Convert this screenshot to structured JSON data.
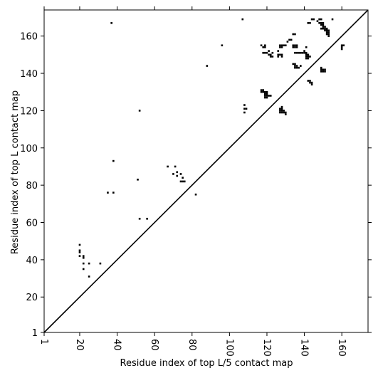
{
  "chart_data": {
    "type": "scatter",
    "title": "",
    "xlabel": "Residue index of top L/5 contact map",
    "ylabel": "Residue index of top L contact map",
    "xlim": [
      1,
      174
    ],
    "ylim": [
      1,
      174
    ],
    "x_ticks": [
      "1",
      "20",
      "40",
      "60",
      "80",
      "100",
      "120",
      "140",
      "160"
    ],
    "y_ticks": [
      "1",
      "20",
      "40",
      "60",
      "80",
      "100",
      "120",
      "140",
      "160"
    ],
    "x_tick_rotation": 90,
    "grid": false,
    "legend": "none",
    "diagonal": {
      "from": [
        1,
        1
      ],
      "to": [
        174,
        174
      ],
      "color": "#000000"
    },
    "marker_color": "#000000",
    "points": [
      [
        20,
        48
      ],
      [
        20,
        45
      ],
      [
        20,
        44
      ],
      [
        20,
        42
      ],
      [
        22,
        42
      ],
      [
        22,
        41
      ],
      [
        22,
        38
      ],
      [
        25,
        38
      ],
      [
        22,
        35
      ],
      [
        25,
        31
      ],
      [
        31,
        38
      ],
      [
        35,
        76
      ],
      [
        38,
        76
      ],
      [
        38,
        93
      ],
      [
        37,
        167
      ],
      [
        51,
        83
      ],
      [
        52,
        62
      ],
      [
        52,
        120
      ],
      [
        56,
        62
      ],
      [
        67,
        90
      ],
      [
        70,
        86
      ],
      [
        71,
        90
      ],
      [
        72,
        87
      ],
      [
        72,
        85
      ],
      [
        74,
        86
      ],
      [
        74,
        82
      ],
      [
        75,
        82
      ],
      [
        76,
        82
      ],
      [
        75,
        84
      ],
      [
        82,
        75
      ],
      [
        88,
        144
      ],
      [
        96,
        155
      ],
      [
        107,
        169
      ],
      [
        108,
        123
      ],
      [
        108,
        121
      ],
      [
        108,
        119
      ],
      [
        109,
        121
      ],
      [
        117,
        155
      ],
      [
        118,
        154
      ],
      [
        119,
        155
      ],
      [
        119,
        154
      ],
      [
        118,
        151
      ],
      [
        119,
        151
      ],
      [
        120,
        151
      ],
      [
        121,
        152
      ],
      [
        121,
        150
      ],
      [
        122,
        150
      ],
      [
        122,
        149
      ],
      [
        123,
        149
      ],
      [
        123,
        151
      ],
      [
        117,
        131
      ],
      [
        118,
        131
      ],
      [
        117,
        130
      ],
      [
        118,
        130
      ],
      [
        119,
        130
      ],
      [
        120,
        130
      ],
      [
        119,
        129
      ],
      [
        120,
        129
      ],
      [
        119,
        128
      ],
      [
        120,
        128
      ],
      [
        121,
        128
      ],
      [
        122,
        128
      ],
      [
        119,
        127
      ],
      [
        120,
        127
      ],
      [
        126,
        152
      ],
      [
        126,
        150
      ],
      [
        127,
        150
      ],
      [
        128,
        150
      ],
      [
        126,
        149
      ],
      [
        128,
        149
      ],
      [
        127,
        155
      ],
      [
        128,
        155
      ],
      [
        129,
        155
      ],
      [
        127,
        154
      ],
      [
        128,
        154
      ],
      [
        130,
        155
      ],
      [
        131,
        157
      ],
      [
        132,
        158
      ],
      [
        133,
        158
      ],
      [
        127,
        121
      ],
      [
        128,
        121
      ],
      [
        127,
        120
      ],
      [
        128,
        120
      ],
      [
        129,
        120
      ],
      [
        127,
        119
      ],
      [
        128,
        119
      ],
      [
        129,
        119
      ],
      [
        130,
        119
      ],
      [
        130,
        118
      ],
      [
        128,
        122
      ],
      [
        134,
        161
      ],
      [
        135,
        161
      ],
      [
        134,
        155
      ],
      [
        135,
        155
      ],
      [
        136,
        155
      ],
      [
        134,
        154
      ],
      [
        135,
        154
      ],
      [
        136,
        154
      ],
      [
        135,
        151
      ],
      [
        136,
        151
      ],
      [
        137,
        151
      ],
      [
        138,
        151
      ],
      [
        139,
        151
      ],
      [
        140,
        151
      ],
      [
        141,
        151
      ],
      [
        140,
        152
      ],
      [
        134,
        145
      ],
      [
        135,
        145
      ],
      [
        135,
        144
      ],
      [
        136,
        144
      ],
      [
        135,
        143
      ],
      [
        136,
        143
      ],
      [
        137,
        143
      ],
      [
        138,
        144
      ],
      [
        141,
        150
      ],
      [
        142,
        150
      ],
      [
        141,
        149
      ],
      [
        142,
        149
      ],
      [
        143,
        149
      ],
      [
        141,
        148
      ],
      [
        142,
        148
      ],
      [
        141,
        154
      ],
      [
        142,
        167
      ],
      [
        143,
        167
      ],
      [
        144,
        169
      ],
      [
        145,
        169
      ],
      [
        142,
        136
      ],
      [
        143,
        136
      ],
      [
        143,
        135
      ],
      [
        144,
        135
      ],
      [
        144,
        134
      ],
      [
        148,
        169
      ],
      [
        147,
        168
      ],
      [
        149,
        169
      ],
      [
        148,
        167
      ],
      [
        149,
        167
      ],
      [
        150,
        167
      ],
      [
        149,
        166
      ],
      [
        150,
        166
      ],
      [
        150,
        165
      ],
      [
        151,
        165
      ],
      [
        151,
        164
      ],
      [
        152,
        164
      ],
      [
        149,
        164
      ],
      [
        150,
        164
      ],
      [
        151,
        163
      ],
      [
        152,
        163
      ],
      [
        153,
        163
      ],
      [
        152,
        162
      ],
      [
        153,
        162
      ],
      [
        152,
        161
      ],
      [
        153,
        161
      ],
      [
        153,
        160
      ],
      [
        155,
        169
      ],
      [
        149,
        143
      ],
      [
        149,
        142
      ],
      [
        150,
        142
      ],
      [
        151,
        142
      ],
      [
        149,
        141
      ],
      [
        150,
        141
      ],
      [
        151,
        141
      ],
      [
        160,
        155
      ],
      [
        160,
        154
      ],
      [
        161,
        155
      ],
      [
        160,
        153
      ]
    ]
  }
}
